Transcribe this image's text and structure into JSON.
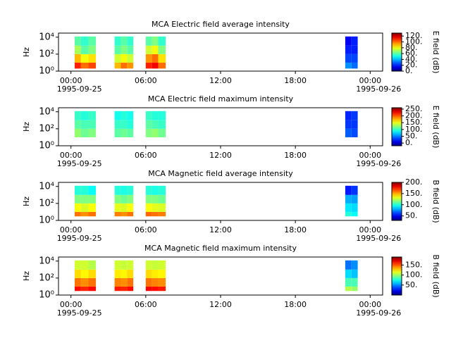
{
  "chart_data": [
    {
      "type": "heatmap",
      "title": "MCA  Electric field average intensity",
      "ylabel": "Hz",
      "colorbar_label": "E field (dB)",
      "xlim": [
        -1,
        25
      ],
      "xticks": [
        {
          "value": 0,
          "label": "00:00"
        },
        {
          "value": 6,
          "label": "06:00"
        },
        {
          "value": 12,
          "label": "12:00"
        },
        {
          "value": 18,
          "label": "18:00"
        },
        {
          "value": 24,
          "label": "00:00"
        }
      ],
      "date_labels": [
        {
          "value": 0,
          "label": "1995-09-25"
        },
        {
          "value": 24,
          "label": "1995-09-26"
        }
      ],
      "log_y": true,
      "ylim": [
        1,
        30000
      ],
      "yticks": [
        {
          "value": 1,
          "label": "10⁰"
        },
        {
          "value": 100,
          "label": "10²"
        },
        {
          "value": 10000,
          "label": "10⁴"
        }
      ],
      "x": [
        0.3,
        0.8,
        1.4,
        2.0,
        3.5,
        4.0,
        4.5,
        5.0,
        6.0,
        6.5,
        7.0,
        7.6,
        22.0,
        22.5,
        23.0
      ],
      "y": [
        2,
        10,
        100,
        1000,
        12000
      ],
      "values": [
        [
          110,
          90,
          70,
          60
        ],
        [
          100,
          80,
          60,
          55
        ],
        [
          105,
          85,
          65,
          60
        ],
        null,
        [
          90,
          75,
          60,
          55
        ],
        [
          100,
          80,
          65,
          60
        ],
        [
          95,
          75,
          60,
          55
        ],
        null,
        [
          110,
          95,
          75,
          60
        ],
        [
          115,
          100,
          80,
          65
        ],
        [
          100,
          85,
          65,
          55
        ],
        null,
        [
          35,
          25,
          20,
          15
        ],
        [
          30,
          25,
          20,
          20
        ]
      ],
      "clim": [
        0,
        130
      ],
      "cticks": [
        {
          "value": 0,
          "label": "0."
        },
        {
          "value": 20,
          "label": "20."
        },
        {
          "value": 40,
          "label": "40."
        },
        {
          "value": 60,
          "label": "60."
        },
        {
          "value": 80,
          "label": "80."
        },
        {
          "value": 100,
          "label": "100."
        },
        {
          "value": 120,
          "label": "120."
        }
      ]
    },
    {
      "type": "heatmap",
      "title": "MCA  Electric field maximum intensity",
      "ylabel": "Hz",
      "colorbar_label": "E field (dB)",
      "xlim": [
        -1,
        25
      ],
      "xticks": [
        {
          "value": 0,
          "label": "00:00"
        },
        {
          "value": 6,
          "label": "06:00"
        },
        {
          "value": 12,
          "label": "12:00"
        },
        {
          "value": 18,
          "label": "18:00"
        },
        {
          "value": 24,
          "label": "00:00"
        }
      ],
      "date_labels": [
        {
          "value": 0,
          "label": "1995-09-25"
        },
        {
          "value": 24,
          "label": "1995-09-26"
        }
      ],
      "log_y": true,
      "ylim": [
        1,
        30000
      ],
      "yticks": [
        {
          "value": 1,
          "label": "10⁰"
        },
        {
          "value": 100,
          "label": "10²"
        },
        {
          "value": 10000,
          "label": "10⁴"
        }
      ],
      "x": [
        0.3,
        0.8,
        1.4,
        2.0,
        3.5,
        4.0,
        4.5,
        5.0,
        6.0,
        6.5,
        7.0,
        7.6,
        22.0,
        22.5,
        23.0
      ],
      "y": [
        10,
        100,
        1000,
        12000
      ],
      "values": [
        [
          125,
          110,
          100
        ],
        [
          115,
          105,
          95
        ],
        [
          120,
          105,
          100
        ],
        null,
        [
          110,
          100,
          90
        ],
        [
          115,
          100,
          95
        ],
        [
          110,
          95,
          90
        ],
        null,
        [
          120,
          110,
          100
        ],
        [
          125,
          105,
          95
        ],
        [
          115,
          100,
          95
        ],
        null,
        [
          40,
          30,
          25
        ],
        [
          35,
          30,
          30
        ]
      ],
      "clim": [
        -20,
        260
      ],
      "cticks": [
        {
          "value": 0,
          "label": "0."
        },
        {
          "value": 50,
          "label": "50."
        },
        {
          "value": 100,
          "label": "100."
        },
        {
          "value": 150,
          "label": "150."
        },
        {
          "value": 200,
          "label": "200."
        },
        {
          "value": 250,
          "label": "250."
        }
      ]
    },
    {
      "type": "heatmap",
      "title": "MCA  Magnetic field average intensity",
      "ylabel": "Hz",
      "colorbar_label": "B field (dB)",
      "xlim": [
        -1,
        25
      ],
      "xticks": [
        {
          "value": 0,
          "label": "00:00"
        },
        {
          "value": 6,
          "label": "06:00"
        },
        {
          "value": 12,
          "label": "12:00"
        },
        {
          "value": 18,
          "label": "18:00"
        },
        {
          "value": 24,
          "label": "00:00"
        }
      ],
      "date_labels": [
        {
          "value": 0,
          "label": "1995-09-25"
        },
        {
          "value": 24,
          "label": "1995-09-26"
        }
      ],
      "log_y": true,
      "ylim": [
        1,
        30000
      ],
      "yticks": [
        {
          "value": 1,
          "label": "10⁰"
        },
        {
          "value": 100,
          "label": "10²"
        },
        {
          "value": 10000,
          "label": "10⁴"
        }
      ],
      "x": [
        0.3,
        0.8,
        1.4,
        2.0,
        3.5,
        4.0,
        4.5,
        5.0,
        6.0,
        6.5,
        7.0,
        7.6,
        22.0,
        22.5,
        23.0
      ],
      "y": [
        3,
        10,
        100,
        1000,
        12000
      ],
      "values": [
        [
          160,
          135,
          115,
          100
        ],
        [
          155,
          130,
          115,
          100
        ],
        [
          160,
          135,
          115,
          95
        ],
        null,
        [
          158,
          132,
          115,
          100
        ],
        [
          155,
          130,
          112,
          98
        ],
        [
          160,
          135,
          115,
          100
        ],
        null,
        [
          162,
          135,
          115,
          100
        ],
        [
          160,
          132,
          115,
          98
        ],
        [
          158,
          130,
          112,
          100
        ],
        null,
        [
          100,
          90,
          80,
          55
        ],
        [
          95,
          88,
          78,
          60
        ]
      ],
      "clim": [
        30,
        200
      ],
      "cticks": [
        {
          "value": 50,
          "label": "50."
        },
        {
          "value": 100,
          "label": "100."
        },
        {
          "value": 150,
          "label": "150."
        },
        {
          "value": 200,
          "label": "200."
        }
      ]
    },
    {
      "type": "heatmap",
      "title": "MCA  Magnetic field maximum intensity",
      "ylabel": "Hz",
      "colorbar_label": "B field (dB)",
      "xlim": [
        -1,
        25
      ],
      "xticks": [
        {
          "value": 0,
          "label": "00:00"
        },
        {
          "value": 6,
          "label": "06:00"
        },
        {
          "value": 12,
          "label": "12:00"
        },
        {
          "value": 18,
          "label": "18:00"
        },
        {
          "value": 24,
          "label": "00:00"
        }
      ],
      "date_labels": [
        {
          "value": 0,
          "label": "1995-09-25"
        },
        {
          "value": 24,
          "label": "1995-09-26"
        }
      ],
      "log_y": true,
      "ylim": [
        1,
        30000
      ],
      "yticks": [
        {
          "value": 1,
          "label": "10⁰"
        },
        {
          "value": 100,
          "label": "10²"
        },
        {
          "value": 10000,
          "label": "10⁴"
        }
      ],
      "x": [
        0.3,
        0.8,
        1.4,
        2.0,
        3.5,
        4.0,
        4.5,
        5.0,
        6.0,
        6.5,
        7.0,
        7.6,
        22.0,
        22.5,
        23.0
      ],
      "y": [
        3,
        10,
        100,
        1000,
        12000
      ],
      "values": [
        [
          165,
          145,
          125,
          110
        ],
        [
          160,
          140,
          120,
          110
        ],
        [
          165,
          145,
          125,
          105
        ],
        null,
        [
          162,
          142,
          122,
          110
        ],
        [
          160,
          140,
          120,
          108
        ],
        [
          165,
          145,
          125,
          110
        ],
        null,
        [
          168,
          145,
          125,
          110
        ],
        [
          165,
          142,
          122,
          108
        ],
        [
          162,
          140,
          120,
          110
        ],
        null,
        [
          105,
          85,
          65,
          45
        ],
        [
          100,
          85,
          60,
          50
        ]
      ],
      "clim": [
        0,
        190
      ],
      "cticks": [
        {
          "value": 50,
          "label": "50."
        },
        {
          "value": 100,
          "label": "100."
        },
        {
          "value": 150,
          "label": "150."
        }
      ]
    }
  ]
}
